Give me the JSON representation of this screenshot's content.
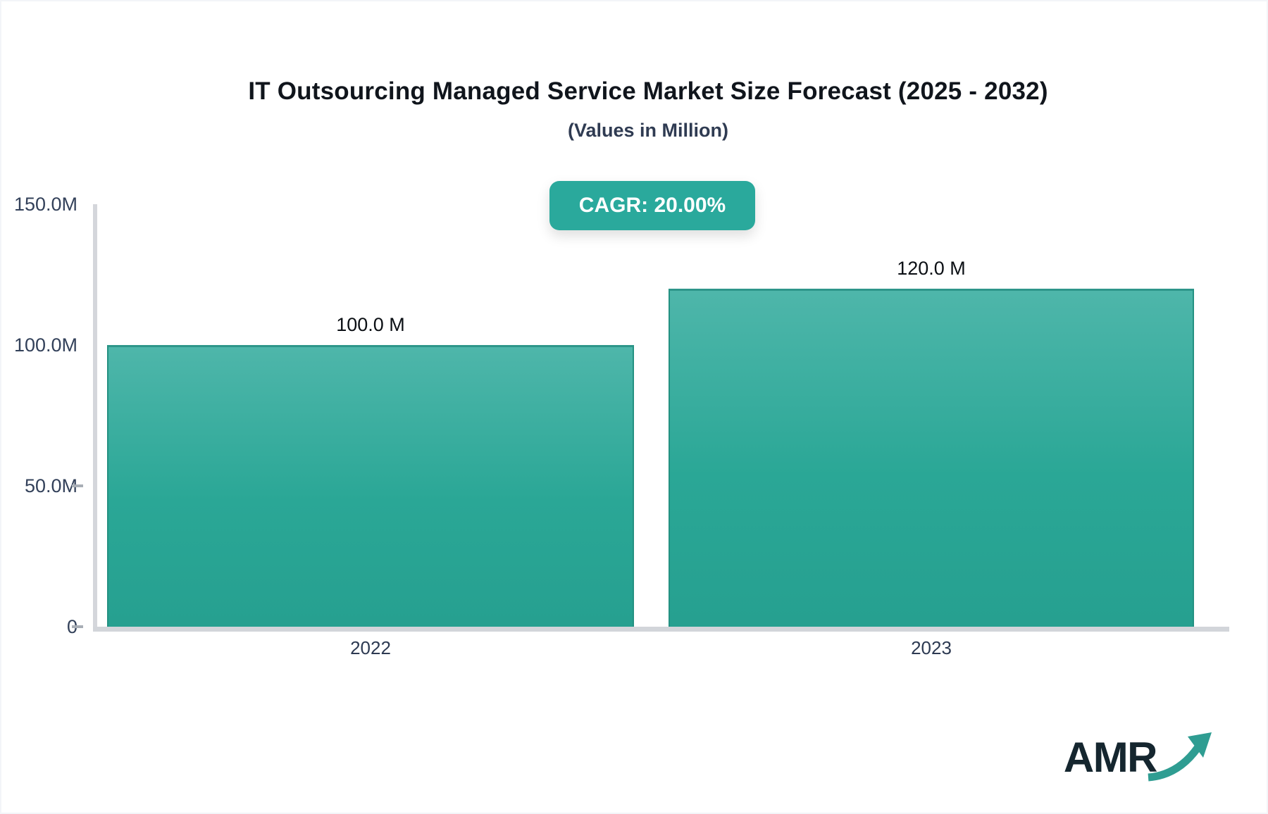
{
  "header": {
    "title": "IT Outsourcing Managed Service Market Size Forecast (2025 - 2032)",
    "subtitle": "(Values in Million)"
  },
  "badge": {
    "label": "CAGR: 20.00%",
    "bg_color": "#2aa99c",
    "text_color": "#ffffff"
  },
  "chart_data": {
    "type": "bar",
    "title": "IT Outsourcing Managed Service Market Size Forecast (2025 - 2032)",
    "subtitle": "(Values in Million)",
    "categories": [
      "2022",
      "2023"
    ],
    "values": [
      100,
      120
    ],
    "value_labels": [
      "100.0 M",
      "120.0 M"
    ],
    "unit": "Million",
    "cagr": "20.00%",
    "ylim": [
      0,
      150
    ],
    "yticks": [
      {
        "label": "150.0M",
        "value": 150,
        "tick_mark": false
      },
      {
        "label": "100.0M",
        "value": 100,
        "tick_mark": false
      },
      {
        "label": "50.0M",
        "value": 50,
        "tick_mark": true
      },
      {
        "label": "0",
        "value": 0,
        "tick_mark": true
      }
    ],
    "grid": false,
    "legend": false,
    "bar_color_top": "#4eb6aa",
    "bar_color_bottom": "#26a090",
    "axis_color": "#d4d6db"
  },
  "logo": {
    "text": "AMR",
    "text_color": "#15262f",
    "arrow_color": "#2f9d92"
  }
}
